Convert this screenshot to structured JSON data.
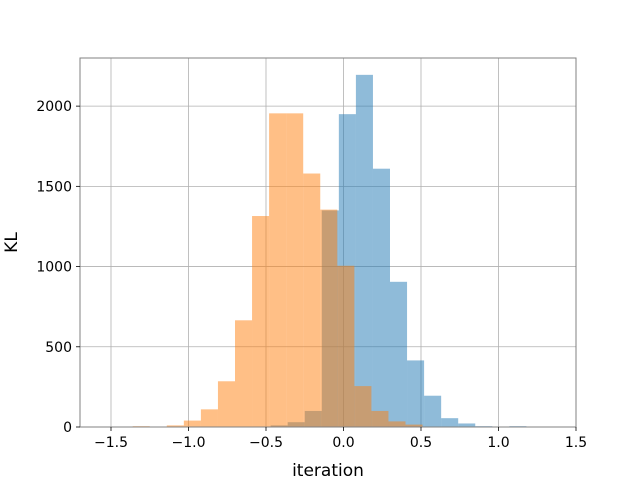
{
  "chart_data": {
    "type": "bar",
    "subtype": "histogram",
    "title": "",
    "xlabel": "iteration",
    "ylabel": "KL",
    "xlim": [
      -1.7,
      1.5
    ],
    "ylim": [
      0,
      2300
    ],
    "xticks": [
      -1.5,
      -1.0,
      -0.5,
      0.0,
      0.5,
      1.0,
      1.5
    ],
    "xtick_labels": [
      "−1.5",
      "−1.0",
      "−0.5",
      "0.0",
      "0.5",
      "1.0",
      "1.5"
    ],
    "yticks": [
      0,
      500,
      1000,
      1500,
      2000
    ],
    "ytick_labels": [
      "0",
      "500",
      "1000",
      "1500",
      "2000"
    ],
    "grid": true,
    "legend": "none",
    "series": [
      {
        "color": "#1f77b4",
        "opacity": 0.5,
        "bins": [
          [
            -0.58,
            -0.47,
            2
          ],
          [
            -0.47,
            -0.36,
            10
          ],
          [
            -0.36,
            -0.25,
            30
          ],
          [
            -0.25,
            -0.14,
            100
          ],
          [
            -0.14,
            -0.03,
            1350
          ],
          [
            -0.03,
            0.08,
            1950
          ],
          [
            0.08,
            0.19,
            2195
          ],
          [
            0.19,
            0.3,
            1610
          ],
          [
            0.3,
            0.41,
            905
          ],
          [
            0.41,
            0.52,
            415
          ],
          [
            0.52,
            0.63,
            195
          ],
          [
            0.63,
            0.74,
            55
          ],
          [
            0.74,
            0.85,
            22
          ],
          [
            0.85,
            0.96,
            5
          ],
          [
            0.96,
            1.07,
            2
          ],
          [
            1.07,
            1.18,
            5
          ]
        ]
      },
      {
        "color": "#ff7f0e",
        "opacity": 0.5,
        "bins": [
          [
            -1.36,
            -1.25,
            5
          ],
          [
            -1.25,
            -1.14,
            2
          ],
          [
            -1.14,
            -1.03,
            10
          ],
          [
            -1.03,
            -0.92,
            40
          ],
          [
            -0.92,
            -0.81,
            110
          ],
          [
            -0.81,
            -0.7,
            285
          ],
          [
            -0.7,
            -0.59,
            665
          ],
          [
            -0.59,
            -0.48,
            1315
          ],
          [
            -0.48,
            -0.37,
            1955
          ],
          [
            -0.37,
            -0.26,
            1955
          ],
          [
            -0.26,
            -0.15,
            1580
          ],
          [
            -0.15,
            -0.04,
            1355
          ],
          [
            -0.04,
            0.07,
            1005
          ],
          [
            0.07,
            0.18,
            255
          ],
          [
            0.18,
            0.29,
            100
          ],
          [
            0.29,
            0.4,
            35
          ],
          [
            0.4,
            0.51,
            15
          ],
          [
            0.51,
            0.62,
            3
          ]
        ]
      }
    ]
  }
}
